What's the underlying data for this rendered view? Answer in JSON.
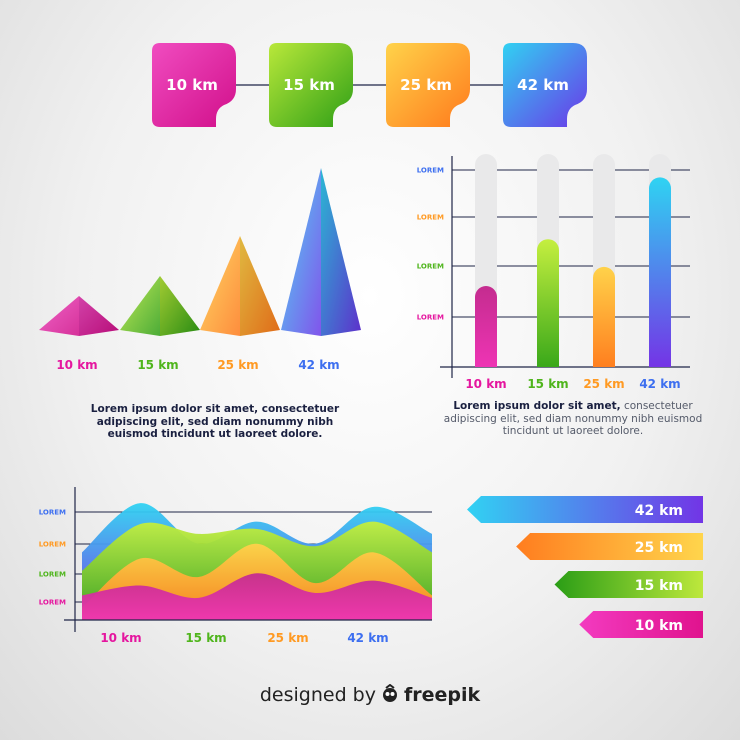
{
  "colors": {
    "magenta": "#e5169f",
    "green": "#4fb51c",
    "orange": "#ff9a23",
    "blue": "#3d6ff0",
    "navy": "#1f2547"
  },
  "milestones": [
    {
      "label": "10 km",
      "color": "magenta"
    },
    {
      "label": "15 km",
      "color": "green"
    },
    {
      "label": "25 km",
      "color": "orange"
    },
    {
      "label": "42 km",
      "color": "blue"
    }
  ],
  "chart_data": [
    {
      "type": "pyramid",
      "categories": [
        "10 km",
        "15 km",
        "25 km",
        "42 km"
      ],
      "values": [
        10,
        15,
        25,
        42
      ]
    },
    {
      "type": "bar",
      "categories": [
        "10 km",
        "15 km",
        "25 km",
        "42 km"
      ],
      "values": [
        10,
        15,
        25,
        42
      ],
      "fill_fraction": [
        0.38,
        0.6,
        0.47,
        0.89
      ],
      "y_tick_labels": [
        "LOREM",
        "LOREM",
        "LOREM",
        "LOREM"
      ],
      "grid": true
    },
    {
      "type": "area",
      "x_tick_labels": [
        "10 km",
        "15 km",
        "25 km",
        "42 km"
      ],
      "y_tick_labels": [
        "LOREM",
        "LOREM",
        "LOREM",
        "LOREM"
      ],
      "series": [
        {
          "color": "blue",
          "values": [
            0.55,
            0.95,
            0.62,
            0.8,
            0.62,
            0.92,
            0.7
          ]
        },
        {
          "color": "green",
          "values": [
            0.4,
            0.78,
            0.7,
            0.74,
            0.6,
            0.8,
            0.55
          ]
        },
        {
          "color": "orange",
          "values": [
            0.1,
            0.5,
            0.35,
            0.62,
            0.3,
            0.55,
            0.2
          ]
        },
        {
          "color": "magenta",
          "values": [
            0.2,
            0.28,
            0.18,
            0.38,
            0.22,
            0.32,
            0.18
          ]
        }
      ],
      "grid": true
    },
    {
      "type": "bar",
      "orientation": "horizontal",
      "categories": [
        "42 km",
        "25 km",
        "15 km",
        "10 km"
      ],
      "values": [
        42,
        25,
        15,
        10
      ]
    }
  ],
  "paragraphs": [
    {
      "bold": "Lorem ipsum dolor sit amet, consectetuer adipiscing elit, sed diam nonummy nibh euismod tincidunt ut laoreet dolore.",
      "rest": ""
    },
    {
      "bold": "Lorem ipsum dolor sit amet,",
      "rest": " consectetuer adipiscing elit, sed diam nonummy nibh euismod tincidunt ut laoreet dolore."
    }
  ],
  "credit": {
    "prefix": "designed by",
    "brand": "freepik"
  }
}
